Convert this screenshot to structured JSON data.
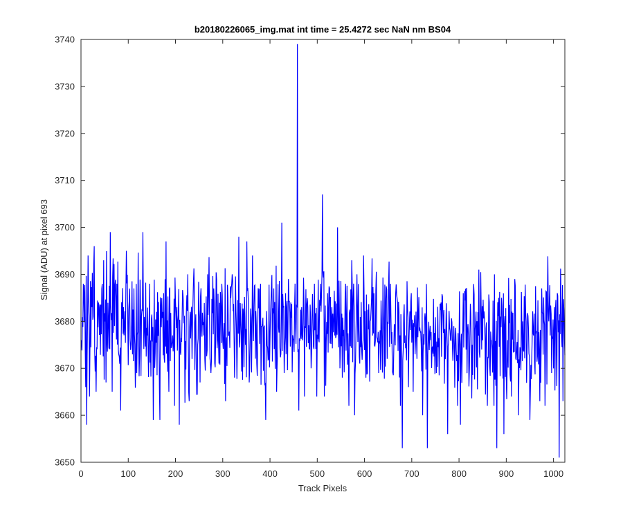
{
  "chart_data": {
    "type": "line",
    "title": "b20180226065_img.mat int time = 25.4272 sec  NaN nm BS04",
    "xlabel": "Track Pixels",
    "ylabel": "Signal (ADU) at pixel 693",
    "xlim": [
      0,
      1024
    ],
    "ylim": [
      3650,
      3740
    ],
    "xticks": [
      0,
      100,
      200,
      300,
      400,
      500,
      600,
      700,
      800,
      900,
      1000
    ],
    "yticks": [
      3650,
      3660,
      3670,
      3680,
      3690,
      3700,
      3710,
      3720,
      3730,
      3740
    ],
    "grid": false,
    "box": true,
    "series": [
      {
        "color": "#0000ff",
        "x_start": 1,
        "x_step": 1,
        "n_points": 1024,
        "approx_mean": 3679,
        "approx_noise_std": 7,
        "late_mean_shift": {
          "from_x": 670,
          "to_x": 960,
          "delta": -2
        },
        "points": [
          [
            1,
            3676
          ],
          [
            5,
            3688
          ],
          [
            10,
            3666
          ],
          [
            12,
            3658
          ],
          [
            15,
            3694
          ],
          [
            18,
            3664
          ],
          [
            23,
            3683
          ],
          [
            26,
            3681
          ],
          [
            28,
            3696
          ],
          [
            32,
            3665
          ],
          [
            37,
            3684
          ],
          [
            45,
            3688
          ],
          [
            48,
            3693
          ],
          [
            53,
            3667
          ],
          [
            58,
            3680
          ],
          [
            62,
            3699
          ],
          [
            66,
            3665
          ],
          [
            71,
            3679
          ],
          [
            76,
            3688
          ],
          [
            84,
            3661
          ],
          [
            90,
            3683
          ],
          [
            96,
            3695
          ],
          [
            104,
            3676
          ],
          [
            112,
            3687
          ],
          [
            118,
            3669
          ],
          [
            128,
            3681
          ],
          [
            131,
            3699
          ],
          [
            140,
            3677
          ],
          [
            145,
            3688
          ],
          [
            153,
            3659
          ],
          [
            160,
            3682
          ],
          [
            167,
            3659
          ],
          [
            175,
            3686
          ],
          [
            180,
            3697
          ],
          [
            186,
            3665
          ],
          [
            194,
            3677
          ],
          [
            198,
            3662
          ],
          [
            203,
            3683
          ],
          [
            208,
            3658
          ],
          [
            214,
            3681
          ],
          [
            226,
            3690
          ],
          [
            229,
            3663
          ],
          [
            237,
            3684
          ],
          [
            244,
            3671
          ],
          [
            252,
            3667
          ],
          [
            260,
            3677
          ],
          [
            268,
            3690
          ],
          [
            275,
            3669
          ],
          [
            282,
            3684
          ],
          [
            292,
            3671
          ],
          [
            298,
            3688
          ],
          [
            306,
            3663
          ],
          [
            312,
            3677
          ],
          [
            320,
            3690
          ],
          [
            325,
            3668
          ],
          [
            334,
            3698
          ],
          [
            339,
            3677
          ],
          [
            348,
            3675
          ],
          [
            351,
            3697
          ],
          [
            356,
            3667
          ],
          [
            363,
            3694
          ],
          [
            372,
            3671
          ],
          [
            380,
            3688
          ],
          [
            391,
            3659
          ],
          [
            400,
            3676
          ],
          [
            408,
            3687
          ],
          [
            414,
            3665
          ],
          [
            425,
            3701
          ],
          [
            430,
            3669
          ],
          [
            435,
            3683
          ],
          [
            444,
            3684
          ],
          [
            450,
            3676
          ],
          [
            458,
            3739
          ],
          [
            461,
            3661
          ],
          [
            467,
            3683
          ],
          [
            473,
            3664
          ],
          [
            480,
            3683
          ],
          [
            487,
            3670
          ],
          [
            494,
            3688
          ],
          [
            499,
            3664
          ],
          [
            507,
            3688
          ],
          [
            511,
            3707
          ],
          [
            515,
            3664
          ],
          [
            522,
            3686
          ],
          [
            526,
            3687
          ],
          [
            531,
            3683
          ],
          [
            537,
            3677
          ],
          [
            543,
            3700
          ],
          [
            548,
            3670
          ],
          [
            553,
            3668
          ],
          [
            560,
            3688
          ],
          [
            567,
            3662
          ],
          [
            573,
            3693
          ],
          [
            579,
            3660
          ],
          [
            584,
            3690
          ],
          [
            590,
            3671
          ],
          [
            598,
            3694
          ],
          [
            603,
            3668
          ],
          [
            612,
            3680
          ],
          [
            620,
            3686
          ],
          [
            630,
            3669
          ],
          [
            640,
            3682
          ],
          [
            648,
            3672
          ],
          [
            655,
            3688
          ],
          [
            662,
            3674
          ],
          [
            670,
            3684
          ],
          [
            676,
            3662
          ],
          [
            680,
            3653
          ],
          [
            686,
            3677
          ],
          [
            693,
            3666
          ],
          [
            699,
            3686
          ],
          [
            703,
            3665
          ],
          [
            711,
            3672
          ],
          [
            716,
            3678
          ],
          [
            723,
            3660
          ],
          [
            733,
            3653
          ],
          [
            740,
            3676
          ],
          [
            752,
            3669
          ],
          [
            762,
            3684
          ],
          [
            776,
            3656
          ],
          [
            781,
            3678
          ],
          [
            790,
            3675
          ],
          [
            803,
            3658
          ],
          [
            808,
            3678
          ],
          [
            815,
            3674
          ],
          [
            820,
            3677
          ],
          [
            828,
            3675
          ],
          [
            842,
            3691
          ],
          [
            848,
            3674
          ],
          [
            860,
            3662
          ],
          [
            868,
            3676
          ],
          [
            875,
            3690
          ],
          [
            880,
            3653
          ],
          [
            888,
            3681
          ],
          [
            895,
            3656
          ],
          [
            903,
            3676
          ],
          [
            911,
            3664
          ],
          [
            918,
            3689
          ],
          [
            926,
            3660
          ],
          [
            935,
            3680
          ],
          [
            942,
            3680
          ],
          [
            950,
            3659
          ],
          [
            958,
            3677
          ],
          [
            964,
            3678
          ],
          [
            971,
            3663
          ],
          [
            975,
            3687
          ],
          [
            982,
            3662
          ],
          [
            990,
            3680
          ],
          [
            996,
            3669
          ],
          [
            1002,
            3683
          ],
          [
            1008,
            3686
          ],
          [
            1012,
            3651
          ],
          [
            1016,
            3684
          ],
          [
            1020,
            3663
          ],
          [
            1023,
            3677
          ]
        ]
      }
    ]
  }
}
